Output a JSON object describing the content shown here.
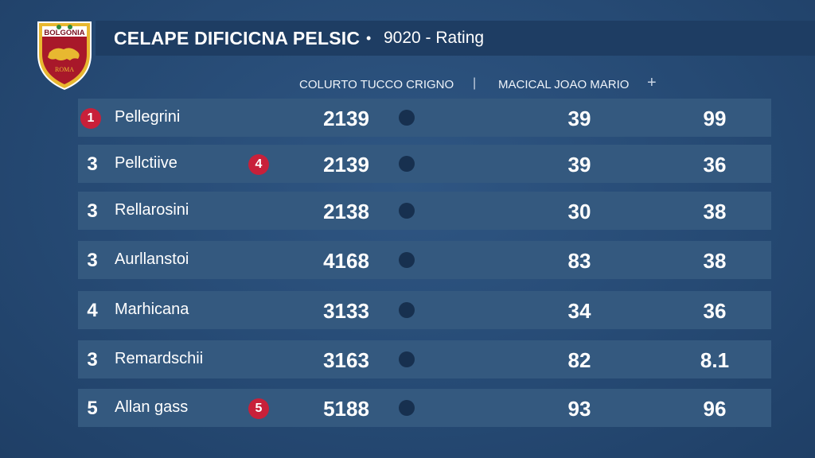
{
  "crest": {
    "top_text": "BOLGONIA",
    "bottom_text": "ROMA",
    "colors": {
      "gold": "#e8b830",
      "red": "#a8182a",
      "maroon": "#7a1020"
    }
  },
  "header": {
    "title": "CELAPE DIFICICNA PELSIC",
    "separator": "•",
    "subtitle": "9020 - Rating"
  },
  "columns": {
    "group_a": "COLURTO TUCCO CRIGNO",
    "separator": "|",
    "group_b": "MACICAL JOAO MARIO",
    "add": "+"
  },
  "colors": {
    "badge": "#c8203a",
    "row": "#34597f",
    "dot": "#17304f"
  },
  "rows": [
    {
      "rank": "1",
      "rank_badge": true,
      "name": "Pellegrini",
      "badge": "",
      "score": "2139",
      "v1": "39",
      "v2": "99"
    },
    {
      "rank": "3",
      "rank_badge": false,
      "name": "Pellctiive",
      "badge": "4",
      "score": "2139",
      "v1": "39",
      "v2": "36"
    },
    {
      "rank": "3",
      "rank_badge": false,
      "name": "Rellarosini",
      "badge": "",
      "score": "2138",
      "v1": "30",
      "v2": "38"
    },
    {
      "rank": "3",
      "rank_badge": false,
      "name": "Aurllanstoi",
      "badge": "",
      "score": "4168",
      "v1": "83",
      "v2": "38"
    },
    {
      "rank": "4",
      "rank_badge": false,
      "name": "Marhicana",
      "badge": "",
      "score": "3133",
      "v1": "34",
      "v2": "36"
    },
    {
      "rank": "3",
      "rank_badge": false,
      "name": "Remardschii",
      "badge": "",
      "score": "3163",
      "v1": "82",
      "v2": "8.1"
    },
    {
      "rank": "5",
      "rank_badge": false,
      "name": "Allan gass",
      "badge": "5",
      "score": "5188",
      "v1": "93",
      "v2": "96"
    }
  ]
}
